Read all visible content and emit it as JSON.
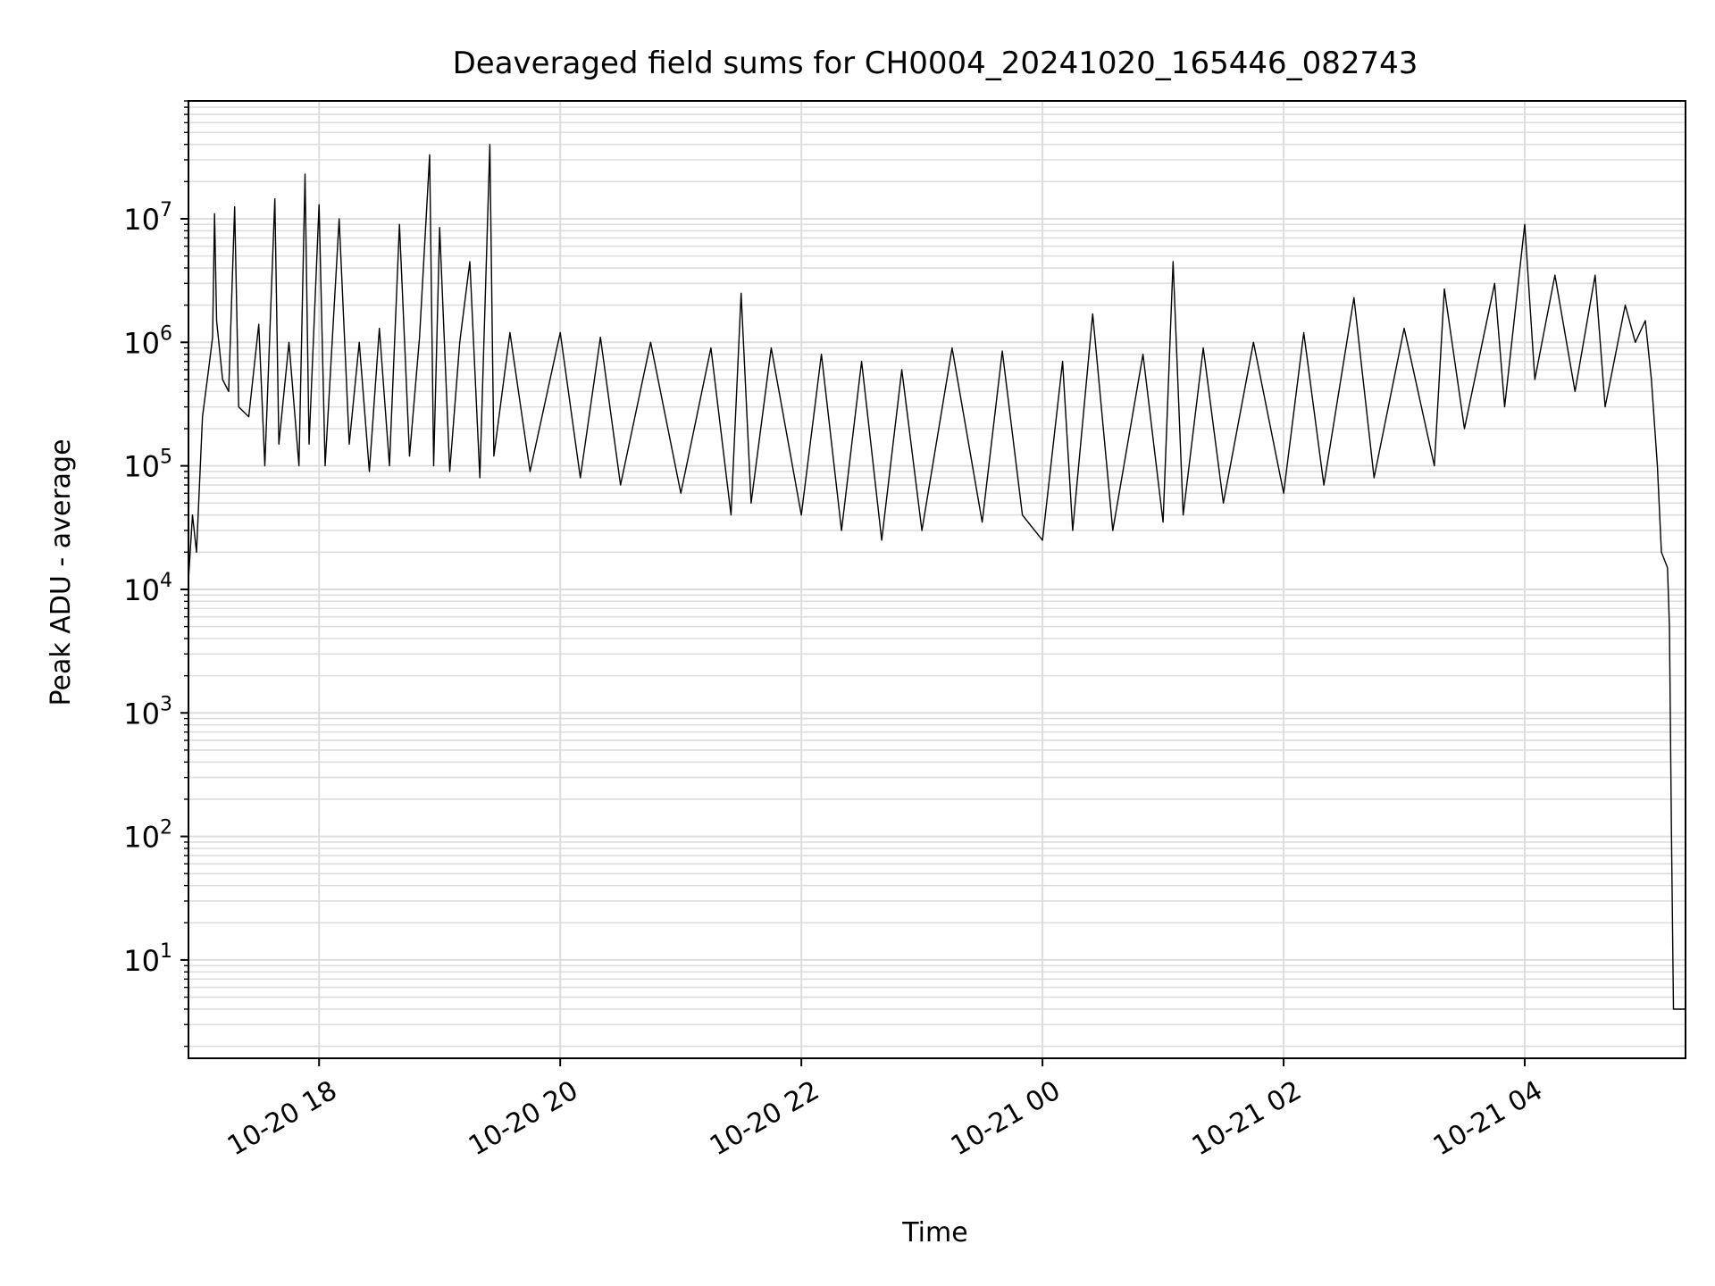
{
  "chart_data": {
    "type": "line",
    "title": "Deaveraged field sums for CH0004_20241020_165446_082743",
    "xlabel": "Time",
    "ylabel": "Peak ADU - average",
    "x_scale": "time",
    "y_scale": "log",
    "xlim": [
      "2024-10-20 16:55",
      "2024-10-21 05:20"
    ],
    "ylim": [
      1.6,
      90000000
    ],
    "x_ticks": [
      {
        "at": "2024-10-20 18:00",
        "label": "10-20 18"
      },
      {
        "at": "2024-10-20 20:00",
        "label": "10-20 20"
      },
      {
        "at": "2024-10-20 22:00",
        "label": "10-20 22"
      },
      {
        "at": "2024-10-21 00:00",
        "label": "10-21 00"
      },
      {
        "at": "2024-10-21 02:00",
        "label": "10-21 02"
      },
      {
        "at": "2024-10-21 04:00",
        "label": "10-21 04"
      }
    ],
    "y_ticks": [
      {
        "at": 10,
        "base": "10",
        "exp": "1"
      },
      {
        "at": 100,
        "base": "10",
        "exp": "2"
      },
      {
        "at": 1000,
        "base": "10",
        "exp": "3"
      },
      {
        "at": 10000,
        "base": "10",
        "exp": "4"
      },
      {
        "at": 100000,
        "base": "10",
        "exp": "5"
      },
      {
        "at": 1000000,
        "base": "10",
        "exp": "6"
      },
      {
        "at": 10000000,
        "base": "10",
        "exp": "7"
      }
    ],
    "grid": true,
    "legend": false,
    "series": [
      {
        "color": "#000000",
        "points": [
          [
            "2024-10-20 16:55",
            12000
          ],
          [
            "2024-10-20 16:57",
            40000
          ],
          [
            "2024-10-20 16:59",
            20000
          ],
          [
            "2024-10-20 17:02",
            250000
          ],
          [
            "2024-10-20 17:05",
            600000
          ],
          [
            "2024-10-20 17:07",
            1100000
          ],
          [
            "2024-10-20 17:08",
            11000000
          ],
          [
            "2024-10-20 17:09",
            1500000
          ],
          [
            "2024-10-20 17:12",
            500000
          ],
          [
            "2024-10-20 17:15",
            400000
          ],
          [
            "2024-10-20 17:18",
            12500000
          ],
          [
            "2024-10-20 17:20",
            300000
          ],
          [
            "2024-10-20 17:25",
            250000
          ],
          [
            "2024-10-20 17:30",
            1400000
          ],
          [
            "2024-10-20 17:33",
            100000
          ],
          [
            "2024-10-20 17:38",
            14500000
          ],
          [
            "2024-10-20 17:40",
            150000
          ],
          [
            "2024-10-20 17:45",
            1000000
          ],
          [
            "2024-10-20 17:50",
            100000
          ],
          [
            "2024-10-20 17:53",
            23000000
          ],
          [
            "2024-10-20 17:55",
            150000
          ],
          [
            "2024-10-20 18:00",
            13000000
          ],
          [
            "2024-10-20 18:03",
            100000
          ],
          [
            "2024-10-20 18:10",
            10000000
          ],
          [
            "2024-10-20 18:15",
            150000
          ],
          [
            "2024-10-20 18:20",
            1000000
          ],
          [
            "2024-10-20 18:25",
            90000
          ],
          [
            "2024-10-20 18:30",
            1300000
          ],
          [
            "2024-10-20 18:35",
            100000
          ],
          [
            "2024-10-20 18:40",
            9000000
          ],
          [
            "2024-10-20 18:45",
            120000
          ],
          [
            "2024-10-20 18:50",
            1100000
          ],
          [
            "2024-10-20 18:55",
            33000000
          ],
          [
            "2024-10-20 18:57",
            100000
          ],
          [
            "2024-10-20 19:00",
            8500000
          ],
          [
            "2024-10-20 19:05",
            90000
          ],
          [
            "2024-10-20 19:10",
            1000000
          ],
          [
            "2024-10-20 19:15",
            4500000
          ],
          [
            "2024-10-20 19:20",
            80000
          ],
          [
            "2024-10-20 19:25",
            40000000
          ],
          [
            "2024-10-20 19:27",
            120000
          ],
          [
            "2024-10-20 19:35",
            1200000
          ],
          [
            "2024-10-20 19:45",
            90000
          ],
          [
            "2024-10-20 20:00",
            1200000
          ],
          [
            "2024-10-20 20:10",
            80000
          ],
          [
            "2024-10-20 20:20",
            1100000
          ],
          [
            "2024-10-20 20:30",
            70000
          ],
          [
            "2024-10-20 20:45",
            1000000
          ],
          [
            "2024-10-20 21:00",
            60000
          ],
          [
            "2024-10-20 21:15",
            900000
          ],
          [
            "2024-10-20 21:25",
            40000
          ],
          [
            "2024-10-20 21:30",
            2500000
          ],
          [
            "2024-10-20 21:35",
            50000
          ],
          [
            "2024-10-20 21:45",
            900000
          ],
          [
            "2024-10-20 22:00",
            40000
          ],
          [
            "2024-10-20 22:10",
            800000
          ],
          [
            "2024-10-20 22:20",
            30000
          ],
          [
            "2024-10-20 22:30",
            700000
          ],
          [
            "2024-10-20 22:40",
            25000
          ],
          [
            "2024-10-20 22:50",
            600000
          ],
          [
            "2024-10-20 23:00",
            30000
          ],
          [
            "2024-10-20 23:15",
            900000
          ],
          [
            "2024-10-20 23:30",
            35000
          ],
          [
            "2024-10-20 23:40",
            850000
          ],
          [
            "2024-10-20 23:50",
            40000
          ],
          [
            "2024-10-21 00:00",
            25000
          ],
          [
            "2024-10-21 00:10",
            700000
          ],
          [
            "2024-10-21 00:15",
            30000
          ],
          [
            "2024-10-21 00:25",
            1700000
          ],
          [
            "2024-10-21 00:35",
            30000
          ],
          [
            "2024-10-21 00:50",
            800000
          ],
          [
            "2024-10-21 01:00",
            35000
          ],
          [
            "2024-10-21 01:05",
            4500000
          ],
          [
            "2024-10-21 01:10",
            40000
          ],
          [
            "2024-10-21 01:20",
            900000
          ],
          [
            "2024-10-21 01:30",
            50000
          ],
          [
            "2024-10-21 01:45",
            1000000
          ],
          [
            "2024-10-21 02:00",
            60000
          ],
          [
            "2024-10-21 02:10",
            1200000
          ],
          [
            "2024-10-21 02:20",
            70000
          ],
          [
            "2024-10-21 02:35",
            2300000
          ],
          [
            "2024-10-21 02:45",
            80000
          ],
          [
            "2024-10-21 03:00",
            1300000
          ],
          [
            "2024-10-21 03:15",
            100000
          ],
          [
            "2024-10-21 03:20",
            2700000
          ],
          [
            "2024-10-21 03:30",
            200000
          ],
          [
            "2024-10-21 03:45",
            3000000
          ],
          [
            "2024-10-21 03:50",
            300000
          ],
          [
            "2024-10-21 04:00",
            9000000
          ],
          [
            "2024-10-21 04:05",
            500000
          ],
          [
            "2024-10-21 04:15",
            3500000
          ],
          [
            "2024-10-21 04:25",
            400000
          ],
          [
            "2024-10-21 04:35",
            3500000
          ],
          [
            "2024-10-21 04:40",
            300000
          ],
          [
            "2024-10-21 04:50",
            2000000
          ],
          [
            "2024-10-21 04:55",
            1000000
          ],
          [
            "2024-10-21 05:00",
            1500000
          ],
          [
            "2024-10-21 05:03",
            500000
          ],
          [
            "2024-10-21 05:06",
            100000
          ],
          [
            "2024-10-21 05:08",
            20000
          ],
          [
            "2024-10-21 05:11",
            15000
          ],
          [
            "2024-10-21 05:12",
            5000
          ],
          [
            "2024-10-21 05:13",
            100
          ],
          [
            "2024-10-21 05:14",
            4
          ],
          [
            "2024-10-21 05:20",
            4
          ]
        ]
      }
    ]
  }
}
